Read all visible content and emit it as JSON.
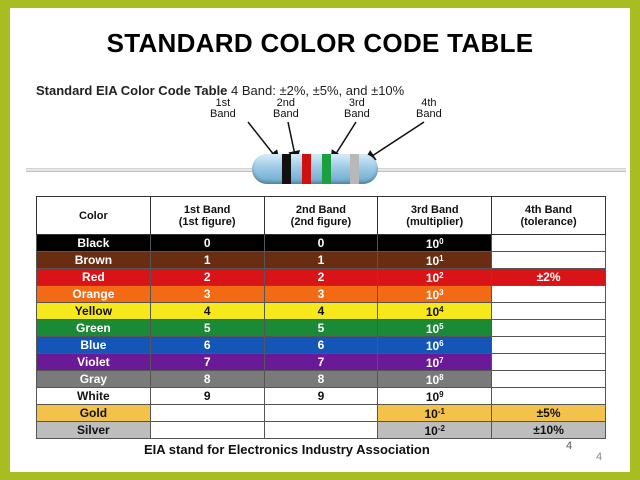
{
  "title": "STANDARD COLOR CODE TABLE",
  "figure": {
    "heading_bold": "Standard EIA Color Code Table",
    "heading_rest": "4 Band:  ±2%, ±5%, and ±10%",
    "band_labels": [
      {
        "line1": "1st",
        "line2": "Band"
      },
      {
        "line1": "2nd",
        "line2": "Band"
      },
      {
        "line1": "3rd",
        "line2": "Band"
      },
      {
        "line1": "4th",
        "line2": "Band"
      }
    ],
    "resistor_band_colors": [
      "#111111",
      "#d01010",
      "#1aa040",
      "#b8b8b8"
    ]
  },
  "table": {
    "headers": [
      {
        "line1": "Color",
        "line2": ""
      },
      {
        "line1": "1st Band",
        "line2": "(1st figure)"
      },
      {
        "line1": "2nd Band",
        "line2": "(2nd figure)"
      },
      {
        "line1": "3rd Band",
        "line2": "(multiplier)"
      },
      {
        "line1": "4th Band",
        "line2": "(tolerance)"
      }
    ],
    "rows": [
      {
        "color": "Black",
        "b1": "0",
        "b2": "0",
        "mult_base": "10",
        "mult_exp": "0",
        "tol": "",
        "bg": "#000000",
        "fg": "#ffffff",
        "tol_bg": "#ffffff",
        "tol_fg": "#111111"
      },
      {
        "color": "Brown",
        "b1": "1",
        "b2": "1",
        "mult_base": "10",
        "mult_exp": "1",
        "tol": "",
        "bg": "#6b2d12",
        "fg": "#ffffff",
        "tol_bg": "#ffffff",
        "tol_fg": "#111111"
      },
      {
        "color": "Red",
        "b1": "2",
        "b2": "2",
        "mult_base": "10",
        "mult_exp": "2",
        "tol": "±2%",
        "bg": "#d81418",
        "fg": "#ffffff",
        "tol_bg": "#d81418",
        "tol_fg": "#ffffff"
      },
      {
        "color": "Orange",
        "b1": "3",
        "b2": "3",
        "mult_base": "10",
        "mult_exp": "3",
        "tol": "",
        "bg": "#f26a14",
        "fg": "#ffffff",
        "tol_bg": "#ffffff",
        "tol_fg": "#111111"
      },
      {
        "color": "Yellow",
        "b1": "4",
        "b2": "4",
        "mult_base": "10",
        "mult_exp": "4",
        "tol": "",
        "bg": "#f6e81a",
        "fg": "#111111",
        "tol_bg": "#ffffff",
        "tol_fg": "#111111"
      },
      {
        "color": "Green",
        "b1": "5",
        "b2": "5",
        "mult_base": "10",
        "mult_exp": "5",
        "tol": "",
        "bg": "#1a8a36",
        "fg": "#ffffff",
        "tol_bg": "#ffffff",
        "tol_fg": "#111111"
      },
      {
        "color": "Blue",
        "b1": "6",
        "b2": "6",
        "mult_base": "10",
        "mult_exp": "6",
        "tol": "",
        "bg": "#1456b8",
        "fg": "#ffffff",
        "tol_bg": "#ffffff",
        "tol_fg": "#111111"
      },
      {
        "color": "Violet",
        "b1": "7",
        "b2": "7",
        "mult_base": "10",
        "mult_exp": "7",
        "tol": "",
        "bg": "#6a1a96",
        "fg": "#ffffff",
        "tol_bg": "#ffffff",
        "tol_fg": "#111111"
      },
      {
        "color": "Gray",
        "b1": "8",
        "b2": "8",
        "mult_base": "10",
        "mult_exp": "8",
        "tol": "",
        "bg": "#7a7a7a",
        "fg": "#ffffff",
        "tol_bg": "#ffffff",
        "tol_fg": "#111111"
      },
      {
        "color": "White",
        "b1": "9",
        "b2": "9",
        "mult_base": "10",
        "mult_exp": "9",
        "tol": "",
        "bg": "#ffffff",
        "fg": "#111111",
        "tol_bg": "#ffffff",
        "tol_fg": "#111111"
      },
      {
        "color": "Gold",
        "b1": "",
        "b2": "",
        "mult_base": "10",
        "mult_exp": "-1",
        "tol": "±5%",
        "bg": "#f2c24a",
        "fg": "#111111",
        "tol_bg": "#f2c24a",
        "tol_fg": "#111111",
        "blank_bg": "#ffffff"
      },
      {
        "color": "Silver",
        "b1": "",
        "b2": "",
        "mult_base": "10",
        "mult_exp": "-2",
        "tol": "±10%",
        "bg": "#bdbdbd",
        "fg": "#111111",
        "tol_bg": "#bdbdbd",
        "tol_fg": "#111111",
        "blank_bg": "#ffffff"
      }
    ]
  },
  "footer": {
    "note": "EIA stand for Electronics Industry Association",
    "page_a": "4",
    "page_b": "4"
  }
}
